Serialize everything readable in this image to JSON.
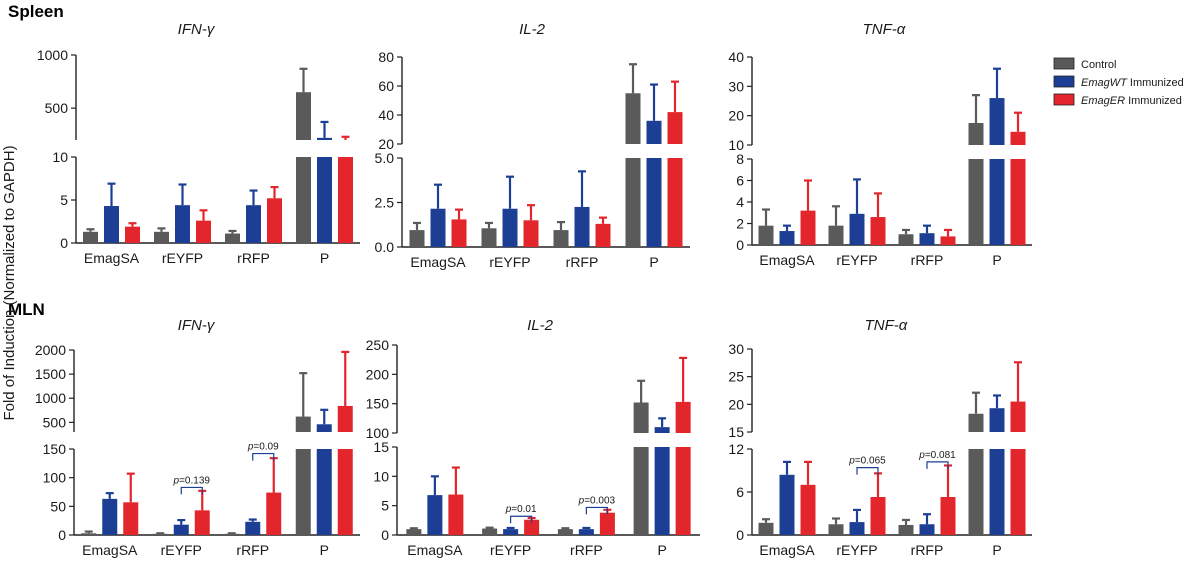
{
  "figure": {
    "ylabel": "Fold of Induction (Normalized to GAPDH)",
    "sections": [
      "Spleen",
      "MLN"
    ],
    "legend": [
      {
        "prefix": "",
        "italic": "",
        "suffix": "Control",
        "color": "#5a5a5a"
      },
      {
        "prefix": "",
        "italic": "EmagWT",
        "suffix": " Immunized",
        "color": "#1c3f95"
      },
      {
        "prefix": "",
        "italic": "EmagER",
        "suffix": " Immunized",
        "color": "#e3262b"
      }
    ]
  },
  "chart_data": [
    {
      "type": "bar",
      "title": "IFN-γ",
      "section": "Spleen",
      "categories": [
        "EmagSA",
        "rEYFP",
        "rRFP",
        "P"
      ],
      "series": [
        {
          "name": "Control",
          "values": [
            1.3,
            1.3,
            1.1,
            650
          ],
          "errors": [
            0.3,
            0.4,
            0.3,
            220
          ]
        },
        {
          "name": "EmagWT Immunized",
          "values": [
            4.3,
            4.4,
            4.4,
            220
          ],
          "errors": [
            2.6,
            2.4,
            1.7,
            150
          ]
        },
        {
          "name": "EmagER Immunized",
          "values": [
            1.9,
            2.6,
            5.2,
            185
          ],
          "errors": [
            0.4,
            1.2,
            1.3,
            45
          ]
        }
      ],
      "axis_break": {
        "lower": [
          0,
          10
        ],
        "upper": [
          200,
          1000
        ]
      },
      "yticks_lower": [
        "0",
        "5",
        "10"
      ],
      "yticks_upper": [
        "500",
        "1000"
      ],
      "yticks_lower_values": [
        0,
        5,
        10
      ],
      "yticks_upper_values": [
        500,
        1000
      ],
      "annotations": []
    },
    {
      "type": "bar",
      "title": "IL-2",
      "section": "Spleen",
      "categories": [
        "EmagSA",
        "rEYFP",
        "rRFP",
        "P"
      ],
      "series": [
        {
          "name": "Control",
          "values": [
            0.95,
            1.05,
            0.95,
            55
          ],
          "errors": [
            0.4,
            0.3,
            0.45,
            20
          ]
        },
        {
          "name": "EmagWT Immunized",
          "values": [
            2.15,
            2.15,
            2.25,
            36
          ],
          "errors": [
            1.35,
            1.8,
            2.0,
            25
          ]
        },
        {
          "name": "EmagER Immunized",
          "values": [
            1.55,
            1.5,
            1.3,
            42
          ],
          "errors": [
            0.55,
            0.85,
            0.35,
            21
          ]
        }
      ],
      "axis_break": {
        "lower": [
          0,
          5
        ],
        "upper": [
          20,
          80
        ]
      },
      "yticks_lower": [
        "0.0",
        "2.5",
        "5.0"
      ],
      "yticks_upper": [
        "20",
        "40",
        "60",
        "80"
      ],
      "yticks_lower_values": [
        0,
        2.5,
        5
      ],
      "yticks_upper_values": [
        20,
        40,
        60,
        80
      ],
      "annotations": []
    },
    {
      "type": "bar",
      "title": "TNF-α",
      "section": "Spleen",
      "categories": [
        "EmagSA",
        "rEYFP",
        "rRFP",
        "P"
      ],
      "series": [
        {
          "name": "Control",
          "values": [
            1.8,
            1.8,
            1.0,
            17.5
          ],
          "errors": [
            1.5,
            1.8,
            0.4,
            9.5
          ]
        },
        {
          "name": "EmagWT Immunized",
          "values": [
            1.3,
            2.9,
            1.1,
            26
          ],
          "errors": [
            0.5,
            3.2,
            0.7,
            10
          ]
        },
        {
          "name": "EmagER Immunized",
          "values": [
            3.2,
            2.6,
            0.8,
            14.5
          ],
          "errors": [
            2.8,
            2.2,
            0.6,
            6.5
          ]
        }
      ],
      "axis_break": {
        "lower": [
          0,
          8
        ],
        "upper": [
          10,
          40
        ]
      },
      "yticks_lower": [
        "0",
        "2",
        "4",
        "6",
        "8"
      ],
      "yticks_upper": [
        "10",
        "20",
        "30",
        "40"
      ],
      "yticks_lower_values": [
        0,
        2,
        4,
        6,
        8
      ],
      "yticks_upper_values": [
        10,
        20,
        30,
        40
      ],
      "annotations": []
    },
    {
      "type": "bar",
      "title": "IFN-γ",
      "section": "MLN",
      "categories": [
        "EmagSA",
        "rEYFP",
        "rRFP",
        "P"
      ],
      "series": [
        {
          "name": "Control",
          "values": [
            3,
            2,
            2,
            620
          ],
          "errors": [
            3,
            1,
            1,
            900
          ]
        },
        {
          "name": "EmagWT Immunized",
          "values": [
            63,
            18,
            23,
            460
          ],
          "errors": [
            10,
            8,
            4,
            300
          ]
        },
        {
          "name": "EmagER Immunized",
          "values": [
            57,
            43,
            74,
            840
          ],
          "errors": [
            50,
            34,
            60,
            1120
          ]
        }
      ],
      "axis_break": {
        "lower": [
          0,
          150
        ],
        "upper": [
          300,
          2000
        ]
      },
      "yticks_lower": [
        "0",
        "50",
        "100",
        "150"
      ],
      "yticks_upper": [
        "500",
        "1000",
        "1500",
        "2000"
      ],
      "yticks_lower_values": [
        0,
        50,
        100,
        150
      ],
      "yticks_upper_values": [
        500,
        1000,
        1500,
        2000
      ],
      "annotations": [
        {
          "text": "p=0.139",
          "group": 1,
          "from": 1,
          "to": 2,
          "level": 83
        },
        {
          "text": "p=0.09",
          "group": 2,
          "from": 1,
          "to": 2,
          "level": 142
        }
      ]
    },
    {
      "type": "bar",
      "title": "IL-2",
      "section": "MLN",
      "categories": [
        "EmagSA",
        "rEYFP",
        "rRFP",
        "P"
      ],
      "series": [
        {
          "name": "Control",
          "values": [
            1.0,
            1.1,
            1.0,
            152
          ],
          "errors": [
            0.15,
            0.15,
            0.15,
            37
          ]
        },
        {
          "name": "EmagWT Immunized",
          "values": [
            6.8,
            1.0,
            1.0,
            110
          ],
          "errors": [
            3.2,
            0.2,
            0.2,
            15
          ]
        },
        {
          "name": "EmagER Immunized",
          "values": [
            6.9,
            2.6,
            3.8,
            153
          ],
          "errors": [
            4.6,
            0.3,
            0.5,
            75
          ]
        }
      ],
      "axis_break": {
        "lower": [
          0,
          15
        ],
        "upper": [
          100,
          250
        ]
      },
      "yticks_lower": [
        "0",
        "5",
        "10",
        "15"
      ],
      "yticks_upper": [
        "100",
        "150",
        "200",
        "250"
      ],
      "yticks_lower_values": [
        0,
        5,
        10,
        15
      ],
      "yticks_upper_values": [
        100,
        150,
        200,
        250
      ],
      "annotations": [
        {
          "text": "p=0.01",
          "group": 1,
          "from": 1,
          "to": 2,
          "level": 3.2
        },
        {
          "text": "p=0.003",
          "group": 2,
          "from": 1,
          "to": 2,
          "level": 4.7
        }
      ]
    },
    {
      "type": "bar",
      "title": "TNF-α",
      "section": "MLN",
      "categories": [
        "EmagSA",
        "rEYFP",
        "rRFP",
        "P"
      ],
      "series": [
        {
          "name": "Control",
          "values": [
            1.7,
            1.5,
            1.4,
            18.3
          ],
          "errors": [
            0.5,
            0.8,
            0.7,
            3.8
          ]
        },
        {
          "name": "EmagWT Immunized",
          "values": [
            8.4,
            1.8,
            1.5,
            19.3
          ],
          "errors": [
            1.8,
            1.7,
            1.4,
            2.3
          ]
        },
        {
          "name": "EmagER Immunized",
          "values": [
            7.0,
            5.3,
            5.3,
            20.5
          ],
          "errors": [
            3.2,
            3.3,
            4.4,
            7.1
          ]
        }
      ],
      "axis_break": {
        "lower": [
          0,
          12
        ],
        "upper": [
          15,
          30
        ]
      },
      "yticks_lower": [
        "0",
        "6",
        "12"
      ],
      "yticks_upper": [
        "15",
        "20",
        "25",
        "30"
      ],
      "yticks_lower_values": [
        0,
        6,
        12
      ],
      "yticks_upper_values": [
        15,
        20,
        25,
        30
      ],
      "annotations": [
        {
          "text": "p=0.065",
          "group": 1,
          "from": 1,
          "to": 2,
          "level": 9.4
        },
        {
          "text": "p=0.081",
          "group": 2,
          "from": 1,
          "to": 2,
          "level": 10.2
        }
      ]
    }
  ]
}
